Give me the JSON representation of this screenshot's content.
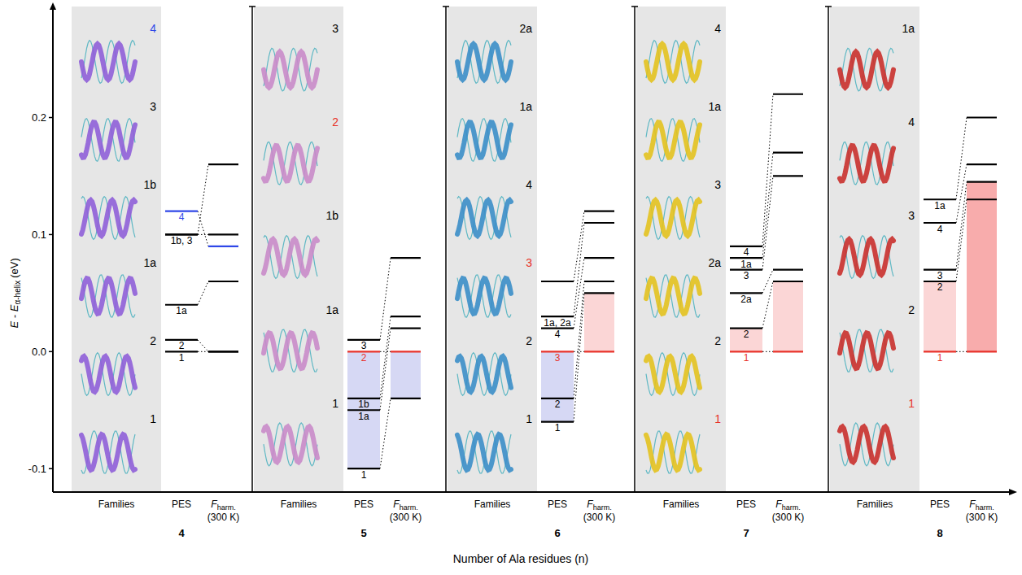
{
  "chart_data": {
    "type": "energy_levels",
    "y_label": {
      "text": "E - E",
      "subscript": "α-helix",
      "unit": "(eV)"
    },
    "x_label": "Number of Ala residues (n)",
    "ylim": [
      -0.12,
      0.29
    ],
    "yticks": [
      -0.1,
      {
        "value": 0,
        "label": "0.0"
      },
      0.1,
      0.2
    ],
    "column_labels": {
      "families": "Families",
      "pes": "PES",
      "f": "F",
      "f_subscript": "harm.",
      "f_temperature": "(300 K)"
    },
    "panels": [
      {
        "n": 4,
        "color": "#8f5fd8",
        "families": [
          {
            "label": "4",
            "color": "#2f47e8"
          },
          {
            "label": "3",
            "color": "#000000"
          },
          {
            "label": "1b",
            "color": "#000000"
          },
          {
            "label": "1a",
            "color": "#000000"
          },
          {
            "label": "2",
            "color": "#000000"
          },
          {
            "label": "1",
            "color": "#000000"
          }
        ],
        "levels": [
          {
            "pes": 0,
            "f": 0,
            "color": "#000000"
          },
          {
            "pes": 0.01,
            "f": 0,
            "color": "#000000"
          },
          {
            "pes": 0.04,
            "f": 0.06,
            "color": "#000000"
          },
          {
            "pes": 0.1,
            "f": 0.16,
            "color": "#000000"
          },
          {
            "pes": 0.1,
            "f": 0.1,
            "color": "#000000"
          },
          {
            "pes": 0.12,
            "f": 0.09,
            "color": "#2f47e8"
          }
        ],
        "pes_labels": [
          {
            "text": "1",
            "value": 0,
            "color": "#000000"
          },
          {
            "text": "2",
            "value": 0.01,
            "color": "#000000"
          },
          {
            "text": "1a",
            "value": 0.04,
            "color": "#000000"
          },
          {
            "text": "1b, 3",
            "value": 0.1,
            "color": "#000000"
          },
          {
            "text": "4",
            "value": 0.12,
            "color": "#2f47e8"
          }
        ]
      },
      {
        "n": 5,
        "color": "#c98bc9",
        "families": [
          {
            "label": "3",
            "color": "#000000"
          },
          {
            "label": "2",
            "color": "#e8322a"
          },
          {
            "label": "1b",
            "color": "#000000"
          },
          {
            "label": "1a",
            "color": "#000000"
          },
          {
            "label": "1",
            "color": "#000000"
          }
        ],
        "levels": [
          {
            "pes": -0.1,
            "f": -0.04,
            "color": "#000000"
          },
          {
            "pes": -0.05,
            "f": 0.02,
            "color": "#000000"
          },
          {
            "pes": -0.04,
            "f": 0.03,
            "color": "#000000"
          },
          {
            "pes": 0,
            "f": 0,
            "color": "#e8322a"
          },
          {
            "pes": 0.01,
            "f": 0.08,
            "color": "#000000"
          }
        ],
        "pes_labels": [
          {
            "text": "1",
            "value": -0.1,
            "color": "#000000"
          },
          {
            "text": "1a",
            "value": -0.05,
            "color": "#000000"
          },
          {
            "text": "1b",
            "value": -0.04,
            "color": "#000000"
          },
          {
            "text": "2",
            "value": 0,
            "color": "#e8322a"
          },
          {
            "text": "3",
            "value": 0.01,
            "color": "#000000"
          }
        ],
        "shade": {
          "pes": [
            -0.1,
            0
          ],
          "f": [
            -0.04,
            0
          ],
          "colors": [
            "#d6d8f4",
            "#d6d8f4"
          ]
        }
      },
      {
        "n": 6,
        "color": "#3b8ec8",
        "families": [
          {
            "label": "2a",
            "color": "#000000"
          },
          {
            "label": "1a",
            "color": "#000000"
          },
          {
            "label": "4",
            "color": "#000000"
          },
          {
            "label": "3",
            "color": "#e8322a"
          },
          {
            "label": "2",
            "color": "#000000"
          },
          {
            "label": "1",
            "color": "#000000"
          }
        ],
        "levels": [
          {
            "pes": -0.06,
            "f": 0.05,
            "color": "#000000"
          },
          {
            "pes": -0.04,
            "f": 0.06,
            "color": "#000000"
          },
          {
            "pes": 0,
            "f": 0,
            "color": "#e8322a"
          },
          {
            "pes": 0.02,
            "f": 0.08,
            "color": "#000000"
          },
          {
            "pes": 0.03,
            "f": 0.11,
            "color": "#000000"
          },
          {
            "pes": 0.06,
            "f": 0.12,
            "color": "#000000"
          }
        ],
        "pes_labels": [
          {
            "text": "1",
            "value": -0.06,
            "color": "#000000"
          },
          {
            "text": "2",
            "value": -0.04,
            "color": "#000000"
          },
          {
            "text": "3",
            "value": 0,
            "color": "#e8322a"
          },
          {
            "text": "4",
            "value": 0.02,
            "color": "#000000"
          },
          {
            "text": "1a, 2a",
            "value": 0.03,
            "color": "#000000"
          }
        ],
        "shade": {
          "pes": [
            -0.06,
            0
          ],
          "f": [
            0,
            0.05
          ],
          "colors": [
            "#d6d8f4",
            "#fbd6d6"
          ]
        }
      },
      {
        "n": 7,
        "color": "#e3c21f",
        "families": [
          {
            "label": "4",
            "color": "#000000"
          },
          {
            "label": "1a",
            "color": "#000000"
          },
          {
            "label": "3",
            "color": "#000000"
          },
          {
            "label": "2a",
            "color": "#000000"
          },
          {
            "label": "2",
            "color": "#000000"
          },
          {
            "label": "1",
            "color": "#e8322a"
          }
        ],
        "levels": [
          {
            "pes": 0,
            "f": 0,
            "color": "#e8322a"
          },
          {
            "pes": 0.02,
            "f": 0.06,
            "color": "#000000"
          },
          {
            "pes": 0.05,
            "f": 0.07,
            "color": "#000000"
          },
          {
            "pes": 0.07,
            "f": 0.15,
            "color": "#000000"
          },
          {
            "pes": 0.08,
            "f": 0.17,
            "color": "#000000"
          },
          {
            "pes": 0.09,
            "f": 0.22,
            "color": "#000000"
          }
        ],
        "pes_labels": [
          {
            "text": "1",
            "value": 0,
            "color": "#e8322a"
          },
          {
            "text": "2",
            "value": 0.02,
            "color": "#000000"
          },
          {
            "text": "2a",
            "value": 0.05,
            "color": "#000000"
          },
          {
            "text": "3",
            "value": 0.07,
            "color": "#000000"
          },
          {
            "text": "1a",
            "value": 0.08,
            "color": "#000000"
          },
          {
            "text": "4",
            "value": 0.09,
            "color": "#000000"
          }
        ],
        "shade": {
          "pes": [
            0,
            0.02
          ],
          "f": [
            0,
            0.06
          ],
          "colors": [
            "#fbd6d6",
            "#fbd6d6"
          ]
        }
      },
      {
        "n": 8,
        "color": "#c9302c",
        "families": [
          {
            "label": "1a",
            "color": "#000000"
          },
          {
            "label": "4",
            "color": "#000000"
          },
          {
            "label": "3",
            "color": "#000000"
          },
          {
            "label": "2",
            "color": "#000000"
          },
          {
            "label": "1",
            "color": "#e8322a"
          }
        ],
        "levels": [
          {
            "pes": 0,
            "f": 0,
            "color": "#e8322a"
          },
          {
            "pes": 0.06,
            "f": 0.13,
            "color": "#000000"
          },
          {
            "pes": 0.07,
            "f": 0.145,
            "color": "#000000"
          },
          {
            "pes": 0.11,
            "f": 0.16,
            "color": "#000000"
          },
          {
            "pes": 0.13,
            "f": 0.2,
            "color": "#000000"
          }
        ],
        "pes_labels": [
          {
            "text": "1",
            "value": 0,
            "color": "#e8322a"
          },
          {
            "text": "2",
            "value": 0.06,
            "color": "#000000"
          },
          {
            "text": "3",
            "value": 0.07,
            "color": "#000000"
          },
          {
            "text": "4",
            "value": 0.11,
            "color": "#000000"
          },
          {
            "text": "1a",
            "value": 0.13,
            "color": "#000000"
          }
        ],
        "shade": {
          "pes": [
            0,
            0.06
          ],
          "f": [
            0,
            0.145
          ],
          "colors": [
            "#fbd6d6",
            "#f8acac"
          ]
        }
      }
    ]
  }
}
